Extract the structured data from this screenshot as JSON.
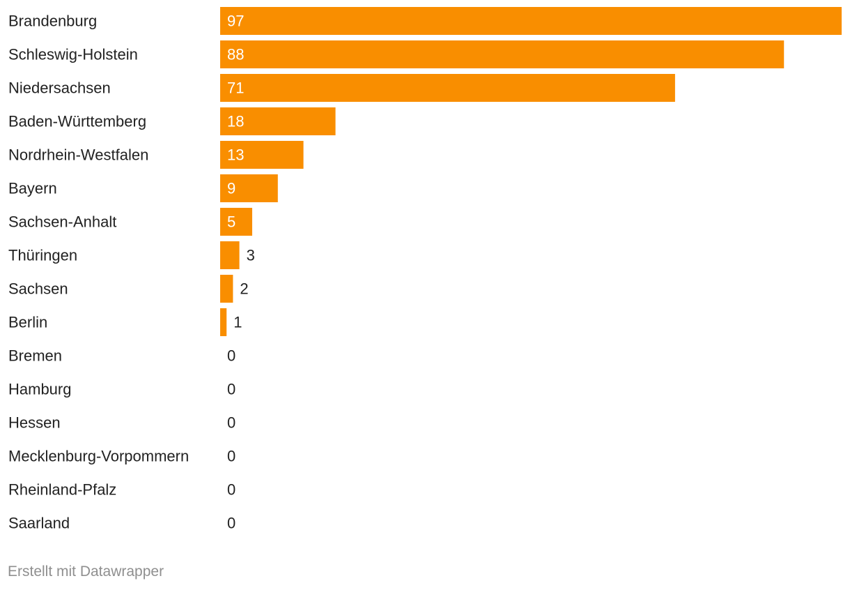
{
  "chart_data": {
    "type": "bar",
    "orientation": "horizontal",
    "title": "",
    "xlabel": "",
    "ylabel": "",
    "categories": [
      "Brandenburg",
      "Schleswig-Holstein",
      "Niedersachsen",
      "Baden-Württemberg",
      "Nordrhein-Westfalen",
      "Bayern",
      "Sachsen-Anhalt",
      "Thüringen",
      "Sachsen",
      "Berlin",
      "Bremen",
      "Hamburg",
      "Hessen",
      "Mecklenburg-Vorpommern",
      "Rheinland-Pfalz",
      "Saarland"
    ],
    "values": [
      97,
      88,
      71,
      18,
      13,
      9,
      5,
      3,
      2,
      1,
      0,
      0,
      0,
      0,
      0,
      0
    ],
    "xlim": [
      0,
      97
    ],
    "grid": false,
    "legend": "none",
    "bar_color": "#f98e00",
    "label_color_inside": "#ffffff",
    "label_color_outside": "#222222",
    "text_color": "#222222"
  },
  "footer": {
    "credit": "Erstellt mit Datawrapper",
    "credit_color": "#8f8f8f"
  }
}
